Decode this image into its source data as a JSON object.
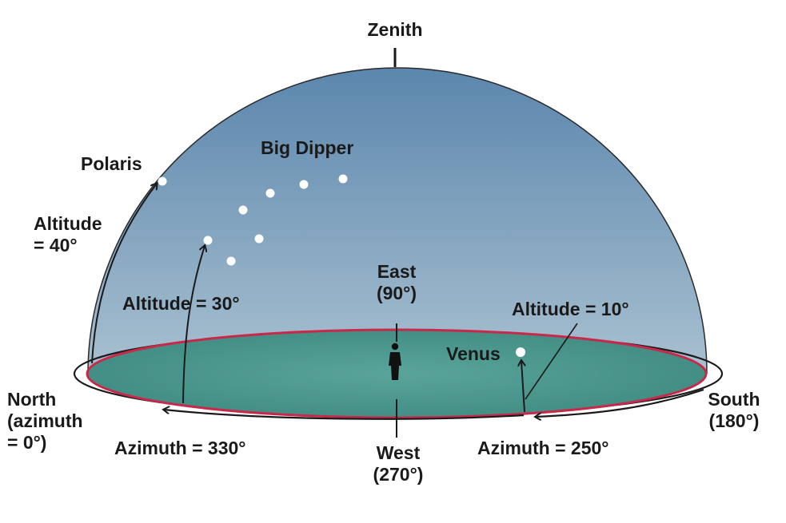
{
  "labels": {
    "zenith": "Zenith",
    "polaris": "Polaris",
    "big_dipper": "Big Dipper",
    "altitude_40": [
      "Altitude",
      "= 40°"
    ],
    "altitude_30": "Altitude = 30°",
    "altitude_10": "Altitude = 10°",
    "east": [
      "East",
      "(90°)"
    ],
    "venus": "Venus",
    "north": [
      "North",
      "(azimuth",
      "= 0°)"
    ],
    "azimuth_330": "Azimuth = 330°",
    "west": [
      "West",
      "(270°)"
    ],
    "azimuth_250": "Azimuth = 250°",
    "south": [
      "South",
      "(180°)"
    ]
  },
  "colors": {
    "sky_top": "#5b86ad",
    "sky_bottom": "#a9c1d1",
    "ground": "#4c9a90",
    "horizon_ring": "#c8284a",
    "outline": "#1a1a1a",
    "star": "#ffffff"
  }
}
